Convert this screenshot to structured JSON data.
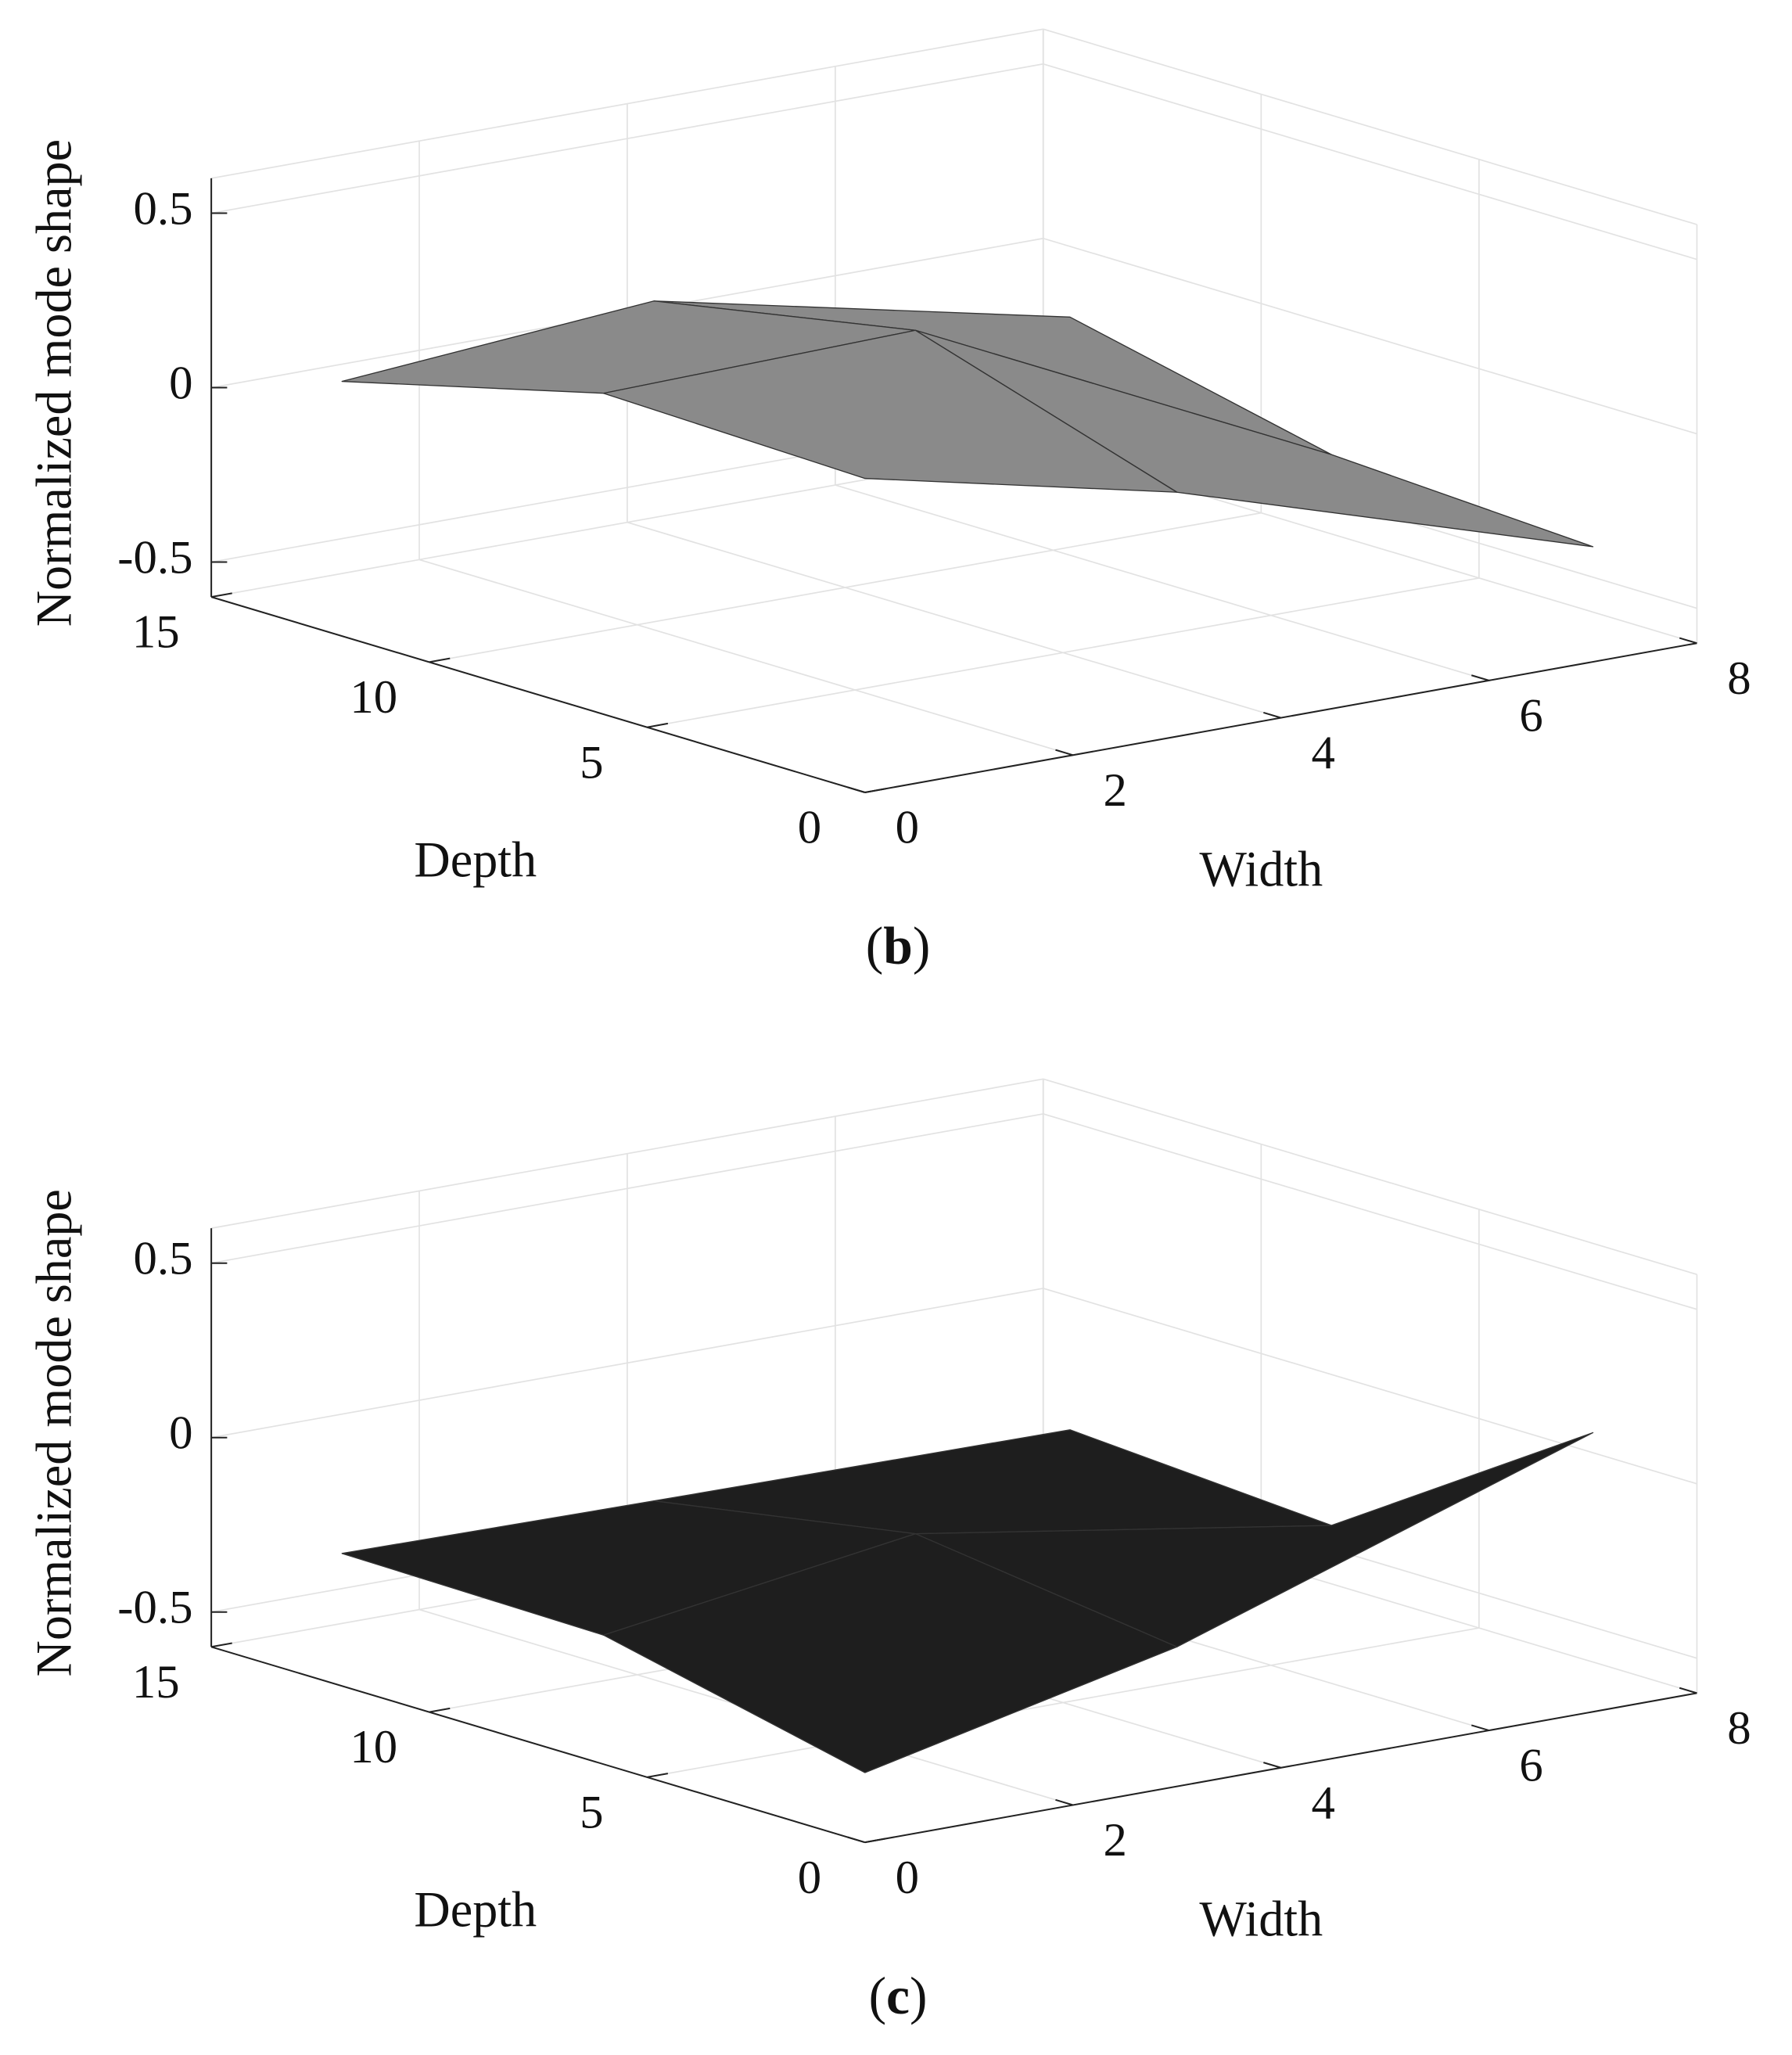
{
  "chart_data": [
    {
      "type": "surface",
      "zlabel": "Normalized mode shape",
      "ylabel": "Depth",
      "xlabel": "Width",
      "caption": [
        "(",
        "b",
        ")"
      ],
      "x": [
        0,
        3,
        7
      ],
      "y": [
        0,
        6,
        12
      ],
      "z": [
        [
          0.3,
          0.1,
          -0.27
        ],
        [
          0.32,
          0.34,
          -0.23
        ],
        [
          0.13,
          0.2,
          -0.06
        ]
      ],
      "color": "#8a8a8a",
      "xlim": [
        0,
        8
      ],
      "ylim": [
        0,
        15
      ],
      "zlim": [
        -0.6,
        0.6
      ],
      "xticks": [
        0,
        2,
        4,
        6,
        8
      ],
      "yticks": [
        0,
        5,
        10,
        15
      ],
      "zticks": [
        -0.5,
        0,
        0.5
      ],
      "grid": true
    },
    {
      "type": "surface",
      "zlabel": "Normalized mode shape",
      "ylabel": "Depth",
      "xlabel": "Width",
      "caption": [
        "(",
        "c",
        ")"
      ],
      "x": [
        0,
        3,
        7
      ],
      "y": [
        0,
        6,
        12
      ],
      "z": [
        [
          -0.4,
          -0.2,
          0.2
        ],
        [
          -0.23,
          -0.1,
          -0.29
        ],
        [
          -0.22,
          -0.23,
          -0.24
        ]
      ],
      "color": "#1e1e1e",
      "xlim": [
        0,
        8
      ],
      "ylim": [
        0,
        15
      ],
      "zlim": [
        -0.6,
        0.6
      ],
      "xticks": [
        0,
        2,
        4,
        6,
        8
      ],
      "yticks": [
        0,
        5,
        10,
        15
      ],
      "zticks": [
        -0.5,
        0,
        0.5
      ],
      "grid": true
    }
  ]
}
